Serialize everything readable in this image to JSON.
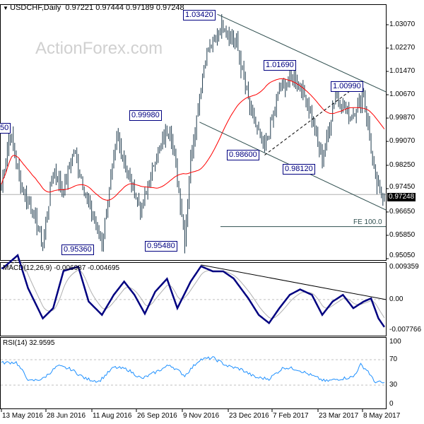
{
  "header": {
    "symbol": "USDCHF,Daily",
    "ohlc": "0.97221 0.97444 0.97189 0.97248"
  },
  "watermark": "ActionForex.com",
  "price_axis": [
    "1.03070",
    "1.02270",
    "1.01470",
    "1.00670",
    "0.99870",
    "0.99070",
    "0.98250",
    "0.97450",
    "0.96650",
    "0.95850",
    "0.95050"
  ],
  "current_price": "0.97248",
  "annotations": {
    "a1": "1.03420",
    "a2": "1.01690",
    "a3": "0.99980",
    "a4": "1.00990",
    "a5": "0.98600",
    "a6": "0.98120",
    "a7": "0.95360",
    "a8": "0.95480",
    "a9": "50",
    "fe": "FE 100.0"
  },
  "macd": {
    "title": "MACD(12,26,9) -0.006987 -0.004695",
    "axis": [
      "0.009359",
      "0.00",
      "-0.007766"
    ]
  },
  "rsi": {
    "title": "RSI(14) 32.9595",
    "axis": [
      "100",
      "70",
      "30",
      "0"
    ]
  },
  "dates": [
    "13 May 2016",
    "28 Jun 2016",
    "11 Aug 2016",
    "26 Sep 2016",
    "9 Nov 2016",
    "23 Dec 2016",
    "7 Feb 2017",
    "23 Mar 2017",
    "8 May 2017"
  ],
  "colors": {
    "bars": "#1e3a4c",
    "ma": "#ff0000",
    "macd": "#000080",
    "signal": "#b0b0b0",
    "rsi": "#1e90ff",
    "trend": "#2f4f4f"
  },
  "chart_data": {
    "type": "line",
    "title": "USDCHF,Daily",
    "bars": 260,
    "price_keypoints": [
      [
        0,
        0.976
      ],
      [
        6,
        0.994
      ],
      [
        13,
        0.976
      ],
      [
        21,
        0.967
      ],
      [
        28,
        0.955
      ],
      [
        35,
        0.981
      ],
      [
        42,
        0.974
      ],
      [
        49,
        0.988
      ],
      [
        59,
        0.969
      ],
      [
        68,
        0.956
      ],
      [
        78,
        0.992
      ],
      [
        88,
        0.976
      ],
      [
        95,
        0.967
      ],
      [
        104,
        0.985
      ],
      [
        114,
        0.996
      ],
      [
        121,
        0.97
      ],
      [
        124,
        0.957
      ],
      [
        128,
        0.985
      ],
      [
        138,
        1.02
      ],
      [
        150,
        1.031
      ],
      [
        159,
        1.024
      ],
      [
        169,
        1.0
      ],
      [
        178,
        0.988
      ],
      [
        188,
        1.008
      ],
      [
        198,
        1.014
      ],
      [
        207,
        1.004
      ],
      [
        217,
        0.984
      ],
      [
        226,
        1.007
      ],
      [
        236,
        0.999
      ],
      [
        245,
        1.007
      ],
      [
        253,
        0.977
      ],
      [
        257,
        0.972
      ],
      [
        259,
        0.9725
      ]
    ],
    "ylim": [
      0.9505,
      1.0307
    ],
    "trendlines": [
      [
        [
          146,
          1.0343
        ],
        [
          260,
          1.0077
        ]
      ],
      [
        [
          134,
          0.9973
        ],
        [
          260,
          0.9672
        ]
      ]
    ],
    "dashed_line": [
      [
        178,
        0.986
      ],
      [
        240,
        1.0096
      ]
    ],
    "fe_level": 0.9615,
    "macd_keypoints": [
      [
        1,
        0.008
      ],
      [
        11,
        0.0113
      ],
      [
        18,
        0.0029
      ],
      [
        28,
        -0.0048
      ],
      [
        35,
        -0.0022
      ],
      [
        42,
        0.0073
      ],
      [
        52,
        0.0084
      ],
      [
        59,
        -0.0005
      ],
      [
        68,
        -0.0039
      ],
      [
        76,
        0.0012
      ],
      [
        83,
        0.0046
      ],
      [
        90,
        0.0012
      ],
      [
        97,
        -0.0036
      ],
      [
        104,
        0.002
      ],
      [
        112,
        0.0053
      ],
      [
        119,
        -0.0022
      ],
      [
        128,
        0.0046
      ],
      [
        135,
        0.0085
      ],
      [
        143,
        0.0072
      ],
      [
        150,
        0.0072
      ],
      [
        157,
        0.0054
      ],
      [
        167,
        0.0003
      ],
      [
        174,
        -0.0039
      ],
      [
        181,
        -0.006
      ],
      [
        188,
        -0.0022
      ],
      [
        195,
        0.0012
      ],
      [
        202,
        0.0026
      ],
      [
        210,
        0.0012
      ],
      [
        217,
        -0.0039
      ],
      [
        224,
        -0.0005
      ],
      [
        231,
        0.0012
      ],
      [
        238,
        -0.0022
      ],
      [
        245,
        -0.0005
      ],
      [
        250,
        0.0003
      ],
      [
        255,
        -0.0048
      ],
      [
        259,
        -0.007
      ]
    ],
    "macd_trendline": [
      [
        135,
        0.00885
      ],
      [
        260,
        0.0
      ]
    ],
    "macd_ylim": [
      -0.007766,
      0.009359
    ],
    "rsi_keypoints": [
      [
        0,
        65
      ],
      [
        10,
        66
      ],
      [
        19,
        36
      ],
      [
        28,
        40
      ],
      [
        38,
        60
      ],
      [
        47,
        55
      ],
      [
        57,
        40
      ],
      [
        66,
        36
      ],
      [
        76,
        58
      ],
      [
        85,
        55
      ],
      [
        95,
        40
      ],
      [
        104,
        50
      ],
      [
        114,
        62
      ],
      [
        124,
        45
      ],
      [
        134,
        70
      ],
      [
        143,
        73
      ],
      [
        153,
        60
      ],
      [
        162,
        55
      ],
      [
        172,
        42
      ],
      [
        181,
        40
      ],
      [
        191,
        58
      ],
      [
        200,
        55
      ],
      [
        210,
        45
      ],
      [
        219,
        36
      ],
      [
        229,
        40
      ],
      [
        238,
        43
      ],
      [
        243,
        62
      ],
      [
        248,
        52
      ],
      [
        252,
        36
      ],
      [
        259,
        33
      ]
    ],
    "rsi_levels": [
      30,
      70
    ],
    "rsi_ylim": [
      0,
      100
    ]
  }
}
